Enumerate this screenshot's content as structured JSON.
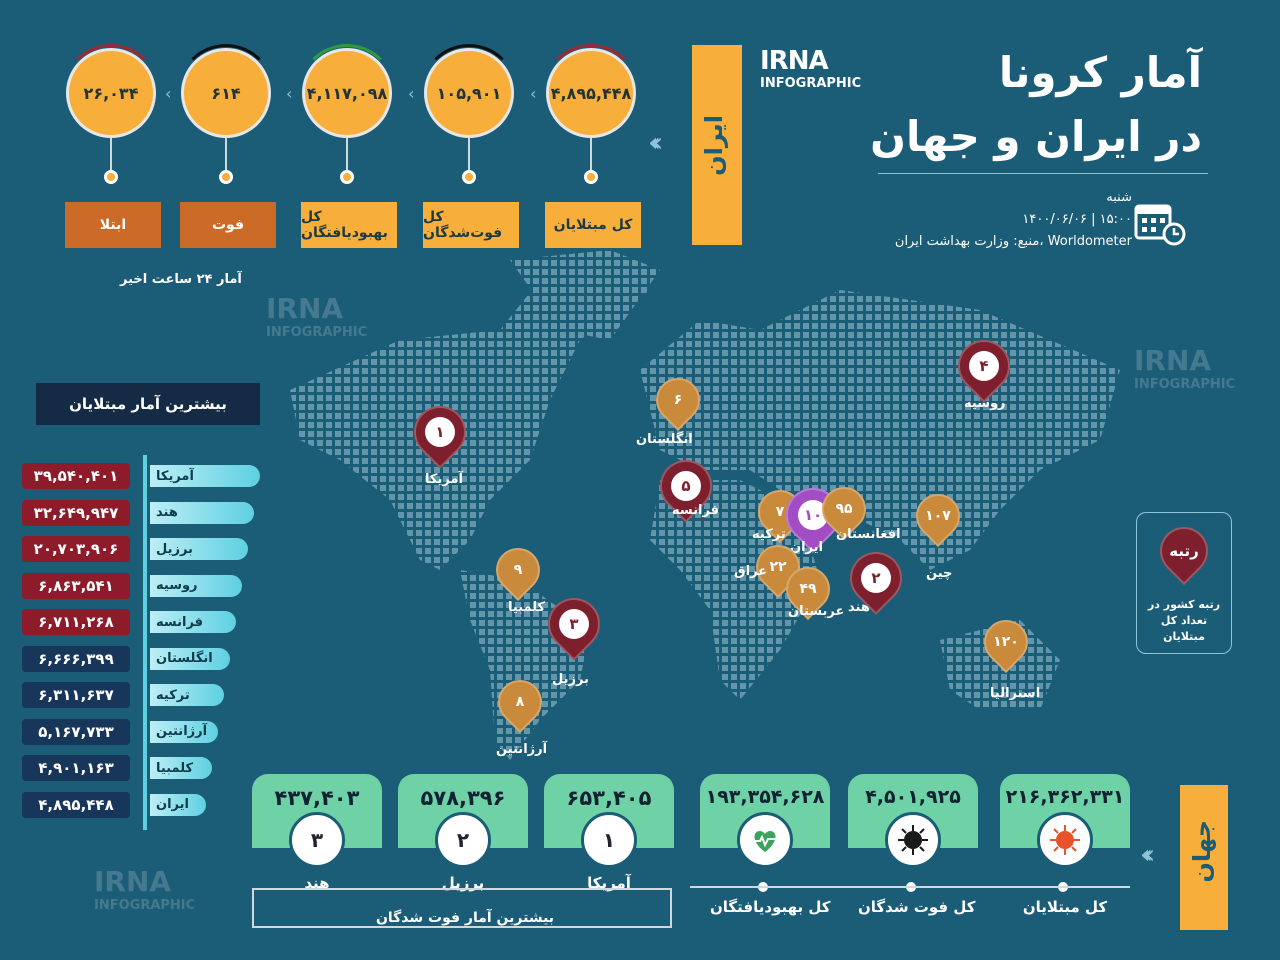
{
  "header": {
    "title_line1": "آمار کرونا",
    "title_line2": "در ایران و جهان",
    "logo_line1": "IRNA",
    "logo_line2": "INFOGRAPHIC",
    "day": "شنبه",
    "date_time": "۱۴۰۰/۰۶/۰۶  |  ۱۵:۰۰",
    "source": "منبع: وزارت بهداشت ایران، Worldometer"
  },
  "iran": {
    "label": "ایران",
    "stats": [
      {
        "value": "۲۶,۰۳۴",
        "label": "ابتلا"
      },
      {
        "value": "۶۱۴",
        "label": "فوت"
      },
      {
        "value": "۴,۱۱۷,۰۹۸",
        "label": "کل بهبودیافتگان"
      },
      {
        "value": "۱۰۵,۹۰۱",
        "label": "کل فوت‌شدگان"
      },
      {
        "value": "۴,۸۹۵,۴۴۸",
        "label": "کل مبتلایان"
      }
    ],
    "last24": "آمار ۲۴ ساعت اخیر"
  },
  "top_list": {
    "heading": "بیشترین آمار مبتلایان",
    "rows": [
      {
        "name": "آمریکا",
        "value": "۳۹,۵۴۰,۴۰۱",
        "color": "#8e1b2a"
      },
      {
        "name": "هند",
        "value": "۳۲,۶۴۹,۹۴۷",
        "color": "#8e1b2a"
      },
      {
        "name": "برزیل",
        "value": "۲۰,۷۰۳,۹۰۶",
        "color": "#8e1b2a"
      },
      {
        "name": "روسیه",
        "value": "۶,۸۶۳,۵۴۱",
        "color": "#8e1b2a"
      },
      {
        "name": "فرانسه",
        "value": "۶,۷۱۱,۲۶۸",
        "color": "#8e1b2a"
      },
      {
        "name": "انگلستان",
        "value": "۶,۶۶۶,۳۹۹",
        "color": "#18355a"
      },
      {
        "name": "ترکیه",
        "value": "۶,۳۱۱,۶۳۷",
        "color": "#18355a"
      },
      {
        "name": "آرژانتین",
        "value": "۵,۱۶۷,۷۳۳",
        "color": "#18355a"
      },
      {
        "name": "کلمبیا",
        "value": "۴,۹۰۱,۱۶۳",
        "color": "#18355a"
      },
      {
        "name": "ایران",
        "value": "۴,۸۹۵,۴۴۸",
        "color": "#18355a"
      }
    ]
  },
  "map_pins": [
    {
      "rank": "۱",
      "name": "آمریکا",
      "color": "#7d1f2c"
    },
    {
      "rank": "۲",
      "name": "هند",
      "color": "#7d1f2c"
    },
    {
      "rank": "۳",
      "name": "برزیل",
      "color": "#7d1f2c"
    },
    {
      "rank": "۴",
      "name": "روسیه",
      "color": "#7d1f2c"
    },
    {
      "rank": "۵",
      "name": "فرانسه",
      "color": "#7d1f2c"
    },
    {
      "rank": "۶",
      "name": "انگلستان",
      "color": "#c98a3b"
    },
    {
      "rank": "۷",
      "name": "ترکیه",
      "color": "#c98a3b"
    },
    {
      "rank": "۸",
      "name": "آرژانتین",
      "color": "#c98a3b"
    },
    {
      "rank": "۹",
      "name": "کلمبیا",
      "color": "#c98a3b"
    },
    {
      "rank": "۱۰",
      "name": "ایران",
      "color": "#a24cc6"
    },
    {
      "rank": "۲۲",
      "name": "عراق",
      "color": "#c98a3b"
    },
    {
      "rank": "۴۹",
      "name": "عربستان",
      "color": "#c98a3b"
    },
    {
      "rank": "۹۵",
      "name": "افغانستان",
      "color": "#c98a3b"
    },
    {
      "rank": "۱۰۷",
      "name": "چین",
      "color": "#c98a3b"
    },
    {
      "rank": "۱۲۰",
      "name": "استرالیا",
      "color": "#c98a3b"
    }
  ],
  "legend": {
    "title": "رتبه",
    "text": "رتبه کشور در تعداد کل مبتلایان"
  },
  "world": {
    "label": "جهان",
    "totals": [
      {
        "value": "۲۱۶,۳۶۲,۳۳۱",
        "label": "کل مبتلایان",
        "icon": "virus-icon"
      },
      {
        "value": "۴,۵۰۱,۹۲۵",
        "label": "کل فوت شدگان",
        "icon": "black-virus-icon"
      },
      {
        "value": "۱۹۳,۳۵۴,۶۲۸",
        "label": "کل بهبودیافتگان",
        "icon": "heartbeat-icon"
      }
    ],
    "deaths_heading": "بیشترین آمار فوت شدگان",
    "deaths": [
      {
        "rank": "۱",
        "country": "آمریکا",
        "value": "۶۵۳,۴۰۵"
      },
      {
        "rank": "۲",
        "country": "برزیل",
        "value": "۵۷۸,۳۹۶"
      },
      {
        "rank": "۳",
        "country": "هند",
        "value": "۴۳۷,۴۰۳"
      }
    ]
  }
}
